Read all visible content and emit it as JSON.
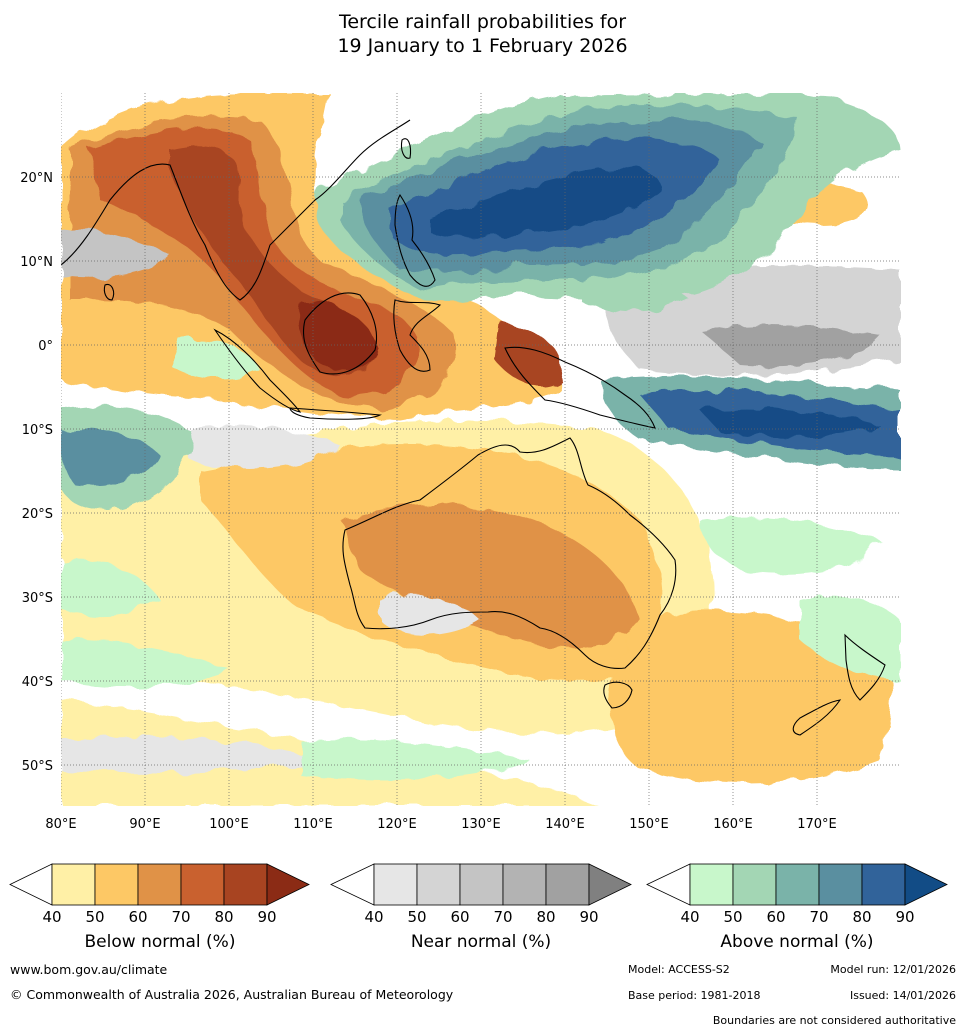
{
  "title_line1": "Tercile rainfall probabilities for",
  "title_line2": "19 January to 1 February 2026",
  "map": {
    "lon_ticks": [
      "80°E",
      "90°E",
      "100°E",
      "110°E",
      "120°E",
      "130°E",
      "140°E",
      "150°E",
      "160°E",
      "170°E"
    ],
    "lat_ticks": [
      "20°N",
      "10°N",
      "0°",
      "10°S",
      "20°S",
      "30°S",
      "40°S",
      "50°S"
    ]
  },
  "colorbars": [
    {
      "label": "Below normal (%)",
      "ticks": [
        "40",
        "50",
        "60",
        "70",
        "80",
        "90"
      ],
      "colors": [
        "#fff0a6",
        "#fdc865",
        "#e09247",
        "#c9612f",
        "#a84421",
        "#8b2b15"
      ]
    },
    {
      "label": "Near normal (%)",
      "ticks": [
        "40",
        "50",
        "60",
        "70",
        "80",
        "90"
      ],
      "colors": [
        "#e6e6e6",
        "#d4d4d4",
        "#c4c4c4",
        "#b3b3b3",
        "#a1a1a1",
        "#808080"
      ]
    },
    {
      "label": "Above normal (%)",
      "ticks": [
        "40",
        "50",
        "60",
        "70",
        "80",
        "90"
      ],
      "colors": [
        "#c8f7cb",
        "#a3d6b4",
        "#7ab3a9",
        "#5a8fa0",
        "#31639a",
        "#124c86"
      ]
    }
  ],
  "footer": {
    "website": "www.bom.gov.au/climate",
    "copyright": "© Commonwealth of Australia 2026, Australian Bureau of Meteorology",
    "model": "Model: ACCESS-S2",
    "model_run": "Model run: 12/01/2026",
    "base_period": "Base period: 1981-2018",
    "issued": "Issued: 14/01/2026",
    "disclaimer": "Boundaries are not considered authoritative"
  }
}
